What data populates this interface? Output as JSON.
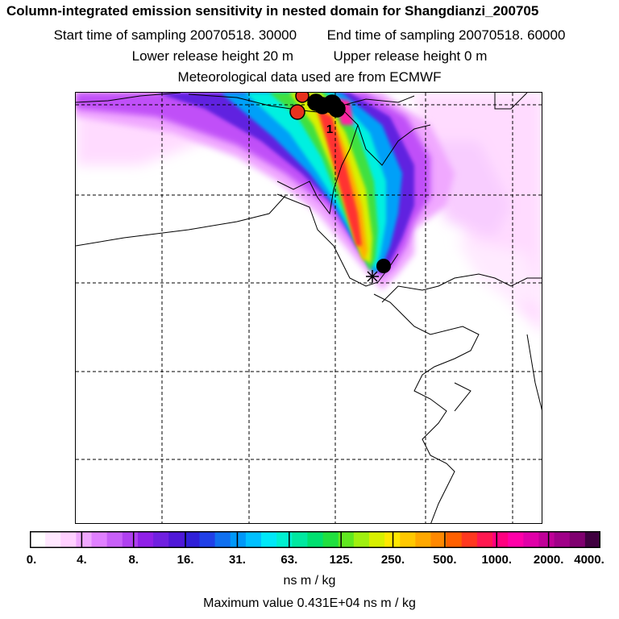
{
  "title": "Column-integrated emission sensitivity in nested domain for Shangdianzi_200705",
  "sampling": {
    "start_label": "Start time of sampling",
    "start_value": "20070518. 30000",
    "end_label": "End time of sampling",
    "end_value": "20070518. 60000"
  },
  "release": {
    "lower_label": "Lower release height",
    "lower_value": "20 m",
    "upper_label": "Upper release height",
    "upper_value": "0 m"
  },
  "met_note": "Meteorological data used are from ECMWF",
  "map": {
    "marker_label": "1",
    "colors": {
      "coast": "#000000",
      "grid": "#000000",
      "station": "#000000",
      "cluster_black": "#000000",
      "cluster_red": "#e8321e"
    }
  },
  "colorbar": {
    "tick_labels": [
      "0.",
      "4.",
      "8.",
      "16.",
      "31.",
      "63.",
      "125.",
      "250.",
      "500.",
      "1000.",
      "2000.",
      "4000."
    ],
    "colors": [
      "#ffffff",
      "#ffe8ff",
      "#ffd0ff",
      "#f0a8ff",
      "#e080ff",
      "#c860f8",
      "#b040f0",
      "#9020e8",
      "#7020e0",
      "#5018d8",
      "#3020d8",
      "#2040e8",
      "#1070f0",
      "#0098f8",
      "#00c0ff",
      "#00e8f8",
      "#00f0d0",
      "#00e8a0",
      "#00e070",
      "#20e040",
      "#60e820",
      "#a0f010",
      "#d8f000",
      "#ffe800",
      "#ffc800",
      "#ffa800",
      "#ff8800",
      "#ff6000",
      "#ff3820",
      "#ff1850",
      "#ff0080",
      "#ff00a8",
      "#e000a8",
      "#c00098",
      "#a00088",
      "#800070",
      "#400040"
    ],
    "unit": "ns m / kg",
    "max_label": "Maximum value  0.431E+04 ns m / kg"
  }
}
